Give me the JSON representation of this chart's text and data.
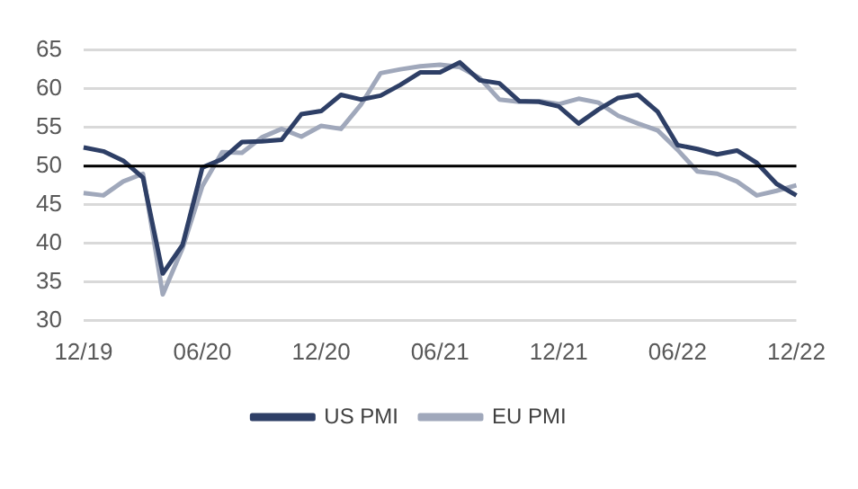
{
  "chart_data": {
    "type": "line",
    "categories": [
      "12/19",
      null,
      null,
      null,
      null,
      null,
      "06/20",
      null,
      null,
      null,
      null,
      null,
      "12/20",
      null,
      null,
      null,
      null,
      null,
      "06/21",
      null,
      null,
      null,
      null,
      null,
      "12/21",
      null,
      null,
      null,
      null,
      null,
      "06/22",
      null,
      null,
      null,
      null,
      null,
      "12/22"
    ],
    "series": [
      {
        "name": "US PMI",
        "color": "#2e3f66",
        "values": [
          52.4,
          51.9,
          50.7,
          48.5,
          36.1,
          39.8,
          49.8,
          50.9,
          53.1,
          53.2,
          53.4,
          56.7,
          57.1,
          59.2,
          58.6,
          59.1,
          60.5,
          62.1,
          62.1,
          63.4,
          61.1,
          60.7,
          58.4,
          58.3,
          57.7,
          55.5,
          57.3,
          58.8,
          59.2,
          57.0,
          52.7,
          52.2,
          51.5,
          52.0,
          50.4,
          47.7,
          46.2
        ]
      },
      {
        "name": "EU PMI",
        "color": "#a0a8bb",
        "values": [
          46.5,
          46.2,
          48.0,
          49.0,
          33.4,
          39.4,
          47.4,
          51.8,
          51.7,
          53.7,
          54.8,
          53.8,
          55.2,
          54.8,
          57.9,
          62.0,
          62.5,
          62.9,
          63.1,
          62.8,
          61.4,
          58.6,
          58.3,
          58.4,
          58.0,
          58.7,
          58.2,
          56.5,
          55.5,
          54.6,
          52.1,
          49.3,
          49.0,
          48.0,
          46.2,
          46.8,
          47.5
        ]
      }
    ],
    "ylim": [
      30,
      65
    ],
    "yticks": [
      30,
      35,
      40,
      45,
      50,
      55,
      60,
      65
    ],
    "grid": "y",
    "legend": "bottom",
    "marker": "none",
    "line_style": "solid",
    "ref_lines": [
      {
        "axis": "y",
        "value": 50,
        "color": "#000000"
      }
    ]
  }
}
